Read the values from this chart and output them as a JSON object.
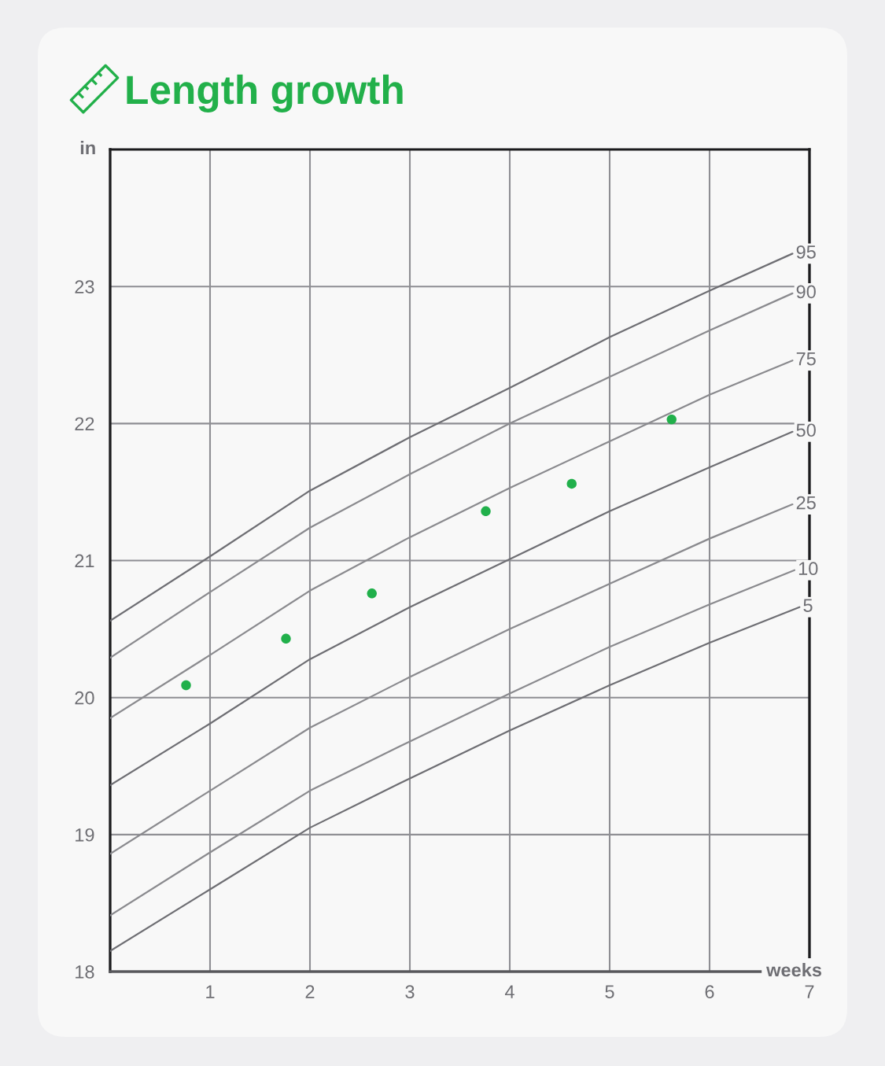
{
  "chart_data": {
    "type": "line",
    "title": "Length growth",
    "xlabel": "weeks",
    "ylabel": "in",
    "xlim": [
      0,
      7
    ],
    "ylim": [
      18,
      24
    ],
    "xticks": [
      1,
      2,
      3,
      4,
      5,
      6,
      7
    ],
    "yticks": [
      18,
      19,
      20,
      21,
      22,
      23
    ],
    "grid": true,
    "series": [
      {
        "name": "95",
        "color": "#6e6e73",
        "x": [
          0,
          1,
          2,
          3,
          4,
          5,
          6,
          6.83
        ],
        "values": [
          20.56,
          21.03,
          21.51,
          21.9,
          22.26,
          22.63,
          22.97,
          23.24
        ]
      },
      {
        "name": "90",
        "color": "#8a8a8e",
        "x": [
          0,
          1,
          2,
          3,
          4,
          5,
          6,
          6.83
        ],
        "values": [
          20.29,
          20.77,
          21.24,
          21.63,
          22.0,
          22.34,
          22.68,
          22.95
        ]
      },
      {
        "name": "75",
        "color": "#8a8a8e",
        "x": [
          0,
          1,
          2,
          3,
          4,
          5,
          6,
          6.83
        ],
        "values": [
          19.85,
          20.31,
          20.78,
          21.17,
          21.53,
          21.87,
          22.21,
          22.46
        ]
      },
      {
        "name": "50",
        "color": "#6e6e73",
        "x": [
          0,
          1,
          2,
          3,
          4,
          5,
          6,
          6.83
        ],
        "values": [
          19.36,
          19.81,
          20.28,
          20.66,
          21.01,
          21.36,
          21.68,
          21.94
        ]
      },
      {
        "name": "25",
        "color": "#8a8a8e",
        "x": [
          0,
          1,
          2,
          3,
          4,
          5,
          6,
          6.83
        ],
        "values": [
          18.86,
          19.32,
          19.78,
          20.15,
          20.5,
          20.83,
          21.16,
          21.41
        ]
      },
      {
        "name": "10",
        "color": "#8a8a8e",
        "x": [
          0,
          1,
          2,
          3,
          4,
          5,
          6,
          6.85
        ],
        "values": [
          18.41,
          18.87,
          19.32,
          19.68,
          20.03,
          20.37,
          20.68,
          20.93
        ]
      },
      {
        "name": "5",
        "color": "#6e6e73",
        "x": [
          0,
          1,
          2,
          3,
          4,
          5,
          6,
          6.9
        ],
        "values": [
          18.15,
          18.6,
          19.05,
          19.41,
          19.76,
          20.09,
          20.4,
          20.66
        ]
      },
      {
        "type": "scatter",
        "color": "#21b04b",
        "marker": "circle",
        "x": [
          0.76,
          1.76,
          2.62,
          3.76,
          4.62,
          5.62
        ],
        "values": [
          20.09,
          20.43,
          20.76,
          21.36,
          21.56,
          22.03
        ]
      }
    ]
  }
}
